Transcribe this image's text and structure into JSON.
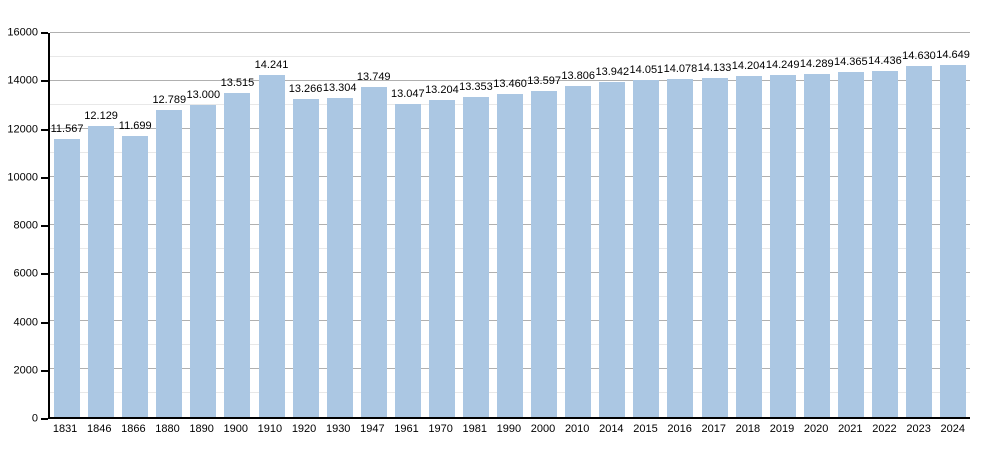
{
  "chart_data": {
    "type": "bar",
    "title": "",
    "xlabel": "",
    "ylabel": "",
    "categories": [
      "1831",
      "1846",
      "1866",
      "1880",
      "1890",
      "1900",
      "1910",
      "1920",
      "1930",
      "1947",
      "1961",
      "1970",
      "1981",
      "1990",
      "2000",
      "2010",
      "2014",
      "2015",
      "2016",
      "2017",
      "2018",
      "2019",
      "2020",
      "2021",
      "2022",
      "2023",
      "2024"
    ],
    "values": [
      11567,
      12129,
      11699,
      12789,
      13000,
      13515,
      14241,
      13266,
      13304,
      13749,
      13047,
      13204,
      13353,
      13460,
      13597,
      13806,
      13942,
      14051,
      14078,
      14133,
      14204,
      14249,
      14289,
      14365,
      14436,
      14630,
      14649
    ],
    "value_labels": [
      "11.567",
      "12.129",
      "11.699",
      "12.789",
      "13.000",
      "13.515",
      "14.241",
      "13.266",
      "13.304",
      "13.749",
      "13.047",
      "13.204",
      "13.353",
      "13.460",
      "13.597",
      "13.806",
      "13.942",
      "14.051",
      "14.078",
      "14.133",
      "14.204",
      "14.249",
      "14.289",
      "14.365",
      "14.436",
      "14.630",
      "14.649"
    ],
    "ylim": [
      0,
      16000
    ],
    "y_major_step": 2000,
    "y_minor_step": 1000,
    "y_tick_labels": [
      "0",
      "2000",
      "4000",
      "6000",
      "8000",
      "10000",
      "12000",
      "14000",
      "16000"
    ],
    "grid": true,
    "legend_position": "none",
    "colors": {
      "bar_fill": "#abc7e3",
      "grid_major": "#b0b0b0",
      "grid_minor": "#e8e8e8",
      "axis": "#000000",
      "text": "#000000",
      "background": "#ffffff"
    }
  }
}
